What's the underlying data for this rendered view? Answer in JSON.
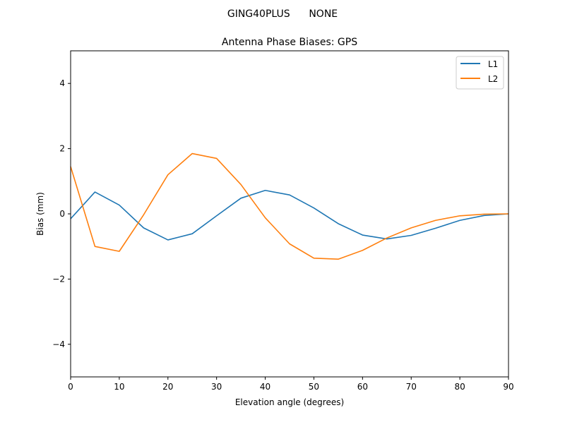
{
  "chart_data": {
    "type": "line",
    "suptitle": "GING40PLUS      NONE",
    "title": "Antenna Phase Biases: GPS",
    "xlabel": "Elevation angle (degrees)",
    "ylabel": "Bias (mm)",
    "xlim": [
      0,
      90
    ],
    "ylim": [
      -5,
      5
    ],
    "x_ticks": [
      0,
      10,
      20,
      30,
      40,
      50,
      60,
      70,
      80,
      90
    ],
    "y_ticks": [
      -4,
      -2,
      0,
      2,
      4
    ],
    "x_tick_labels": [
      "0",
      "10",
      "20",
      "30",
      "40",
      "50",
      "60",
      "70",
      "80",
      "90"
    ],
    "y_tick_labels": [
      "−4",
      "−2",
      "0",
      "2",
      "4"
    ],
    "grid": false,
    "legend_position": "top-right",
    "x": [
      0,
      5,
      10,
      15,
      20,
      25,
      30,
      35,
      40,
      45,
      50,
      55,
      60,
      65,
      70,
      75,
      80,
      85,
      90
    ],
    "series": [
      {
        "name": "L1",
        "color": "#1f77b4",
        "values": [
          -0.15,
          0.67,
          0.27,
          -0.43,
          -0.8,
          -0.61,
          -0.06,
          0.48,
          0.72,
          0.58,
          0.18,
          -0.3,
          -0.65,
          -0.77,
          -0.66,
          -0.44,
          -0.2,
          -0.05,
          0.0
        ]
      },
      {
        "name": "L2",
        "color": "#ff7f0e",
        "values": [
          1.45,
          -1.0,
          -1.15,
          -0.03,
          1.2,
          1.85,
          1.7,
          0.9,
          -0.12,
          -0.92,
          -1.36,
          -1.39,
          -1.12,
          -0.74,
          -0.43,
          -0.2,
          -0.06,
          -0.01,
          0.0
        ]
      }
    ]
  }
}
